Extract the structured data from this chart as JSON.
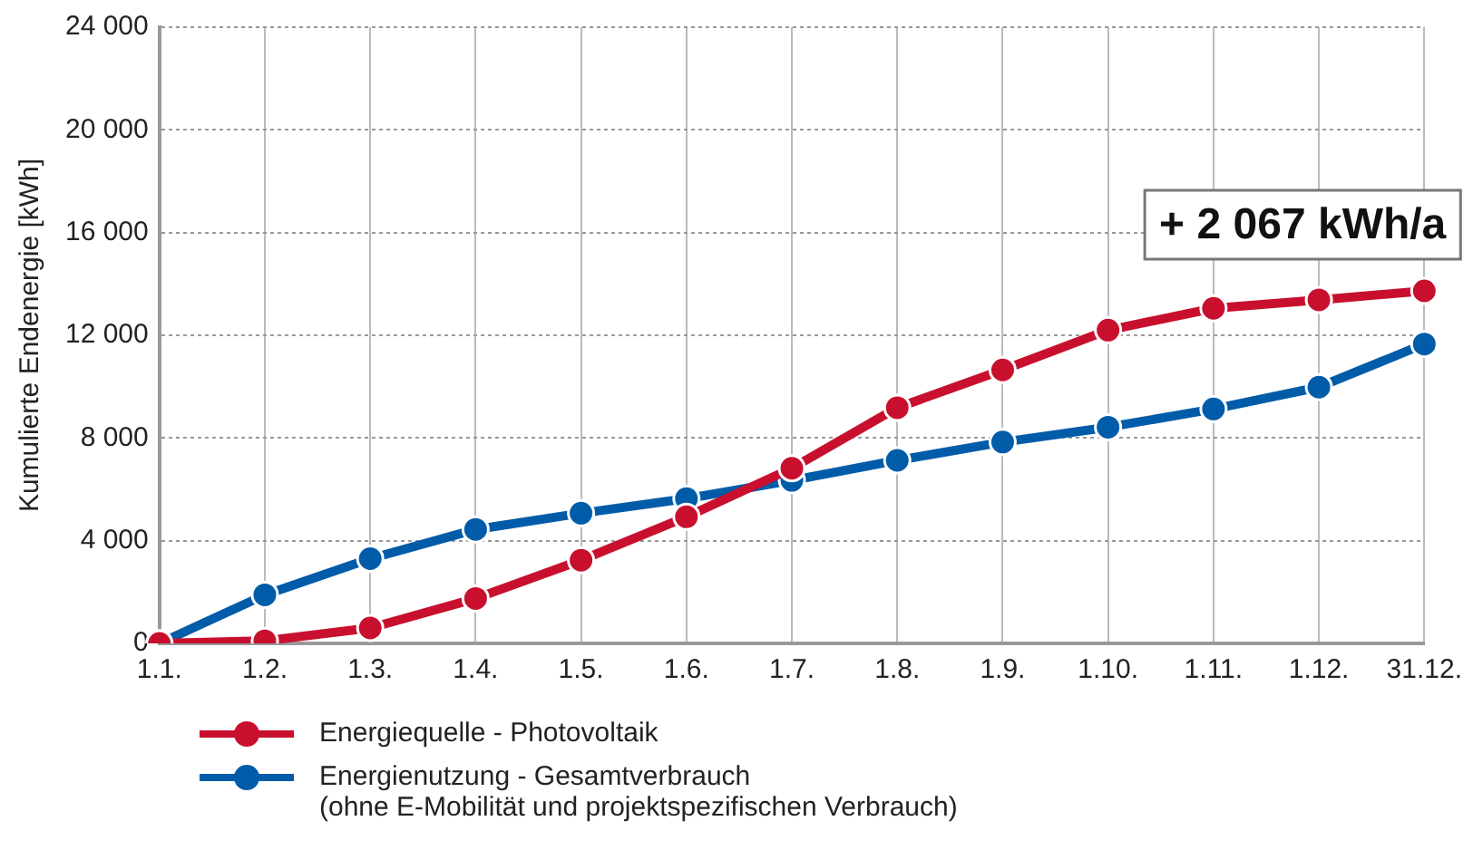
{
  "chart_data": {
    "type": "line",
    "ylabel": "Kumulierte Endenergie [kWh]",
    "categories": [
      "1.1.",
      "1.2.",
      "1.3.",
      "1.4.",
      "1.5.",
      "1.6.",
      "1.7.",
      "1.8.",
      "1.9.",
      "1.10.",
      "1.11.",
      "1.12.",
      "31.12."
    ],
    "series": [
      {
        "name": "Energiequelle - Photovoltaik",
        "color": "#c8102e",
        "values": [
          0,
          100,
          600,
          1750,
          3240,
          4930,
          6820,
          9180,
          10650,
          12200,
          13050,
          13380,
          13730
        ]
      },
      {
        "name": "Energienutzung - Gesamtverbrauch\n(ohne E-Mobilität und projektspezifischen Verbrauch)",
        "color": "#005ca9",
        "values": [
          0,
          1890,
          3300,
          4440,
          5070,
          5640,
          6350,
          7130,
          7840,
          8420,
          9130,
          9980,
          11660
        ]
      }
    ],
    "ylim": [
      0,
      24000
    ],
    "yticks": [
      0,
      {
        "value": 4000,
        "label": "4 000"
      },
      {
        "value": 8000,
        "label": "8 000"
      },
      {
        "value": 12000,
        "label": "12 000"
      },
      {
        "value": 16000,
        "label": "16 000"
      },
      {
        "value": 20000,
        "label": "20 000"
      },
      {
        "value": 24000,
        "label": "24 000"
      }
    ],
    "annotations": [
      "+ 2 067 kWh/a"
    ],
    "grid": true,
    "legend": "bottom left",
    "marker": "circle",
    "line_style": "solid"
  }
}
